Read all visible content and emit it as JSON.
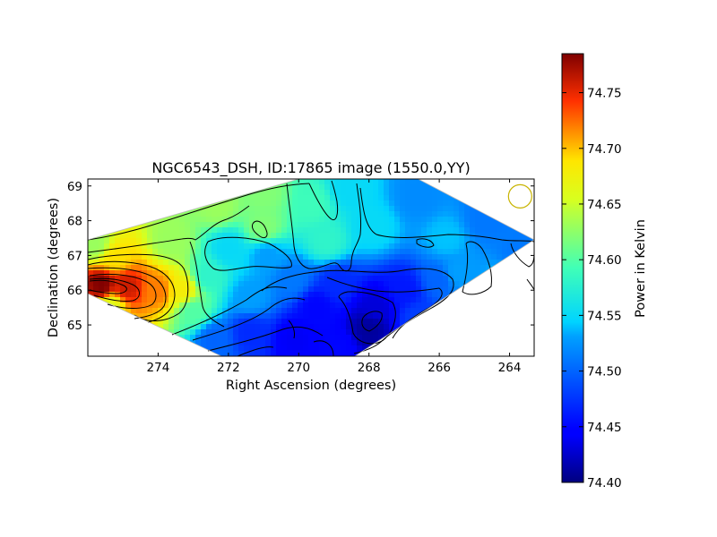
{
  "chart_data": {
    "type": "heatmap",
    "title": "NGC6543_DSH, ID:17865 image (1550.0,YY)",
    "xlabel": "Right Ascension (degrees)",
    "ylabel": "Declination (degrees)",
    "xlim": [
      276.0,
      263.3
    ],
    "ylim": [
      64.1,
      69.2
    ],
    "x_ticks": [
      {
        "value": 274,
        "label": "274"
      },
      {
        "value": 272,
        "label": "272"
      },
      {
        "value": 270,
        "label": "270"
      },
      {
        "value": 268,
        "label": "268"
      },
      {
        "value": 266,
        "label": "266"
      },
      {
        "value": 264,
        "label": "264"
      }
    ],
    "y_ticks": [
      {
        "value": 65,
        "label": "65"
      },
      {
        "value": 66,
        "label": "66"
      },
      {
        "value": 67,
        "label": "67"
      },
      {
        "value": 68,
        "label": "68"
      },
      {
        "value": 69,
        "label": "69"
      }
    ],
    "colorbar": {
      "label": "Power in Kelvin",
      "range": [
        74.4,
        74.785
      ],
      "ticks": [
        {
          "value": 74.4,
          "label": "74.40"
        },
        {
          "value": 74.45,
          "label": "74.45"
        },
        {
          "value": 74.5,
          "label": "74.50"
        },
        {
          "value": 74.55,
          "label": "74.55"
        },
        {
          "value": 74.6,
          "label": "74.60"
        },
        {
          "value": 74.65,
          "label": "74.65"
        },
        {
          "value": 74.7,
          "label": "74.70"
        },
        {
          "value": 74.75,
          "label": "74.75"
        }
      ],
      "colormap": "jet"
    },
    "beam_marker": {
      "ra": 263.7,
      "dec": 68.7,
      "color": "#c8b400"
    },
    "field_outline": [
      [
        276.0,
        67.45
      ],
      [
        270.0,
        69.2
      ],
      [
        266.6,
        69.2
      ],
      [
        263.3,
        67.45
      ],
      [
        268.4,
        64.1
      ],
      [
        272.2,
        64.1
      ],
      [
        276.0,
        65.9
      ]
    ],
    "field_samples": [
      {
        "ra": 275.6,
        "dec": 66.1,
        "value": 74.785
      },
      {
        "ra": 274.9,
        "dec": 66.1,
        "value": 74.76
      },
      {
        "ra": 274.0,
        "dec": 66.0,
        "value": 74.72
      },
      {
        "ra": 273.3,
        "dec": 66.0,
        "value": 74.68
      },
      {
        "ra": 275.2,
        "dec": 66.9,
        "value": 74.69
      },
      {
        "ra": 275.4,
        "dec": 65.6,
        "value": 74.66
      },
      {
        "ra": 275.8,
        "dec": 67.3,
        "value": 74.63
      },
      {
        "ra": 273.6,
        "dec": 67.4,
        "value": 74.63
      },
      {
        "ra": 272.3,
        "dec": 68.4,
        "value": 74.63
      },
      {
        "ra": 271.0,
        "dec": 68.8,
        "value": 74.62
      },
      {
        "ra": 271.0,
        "dec": 67.8,
        "value": 74.62
      },
      {
        "ra": 269.6,
        "dec": 68.5,
        "value": 74.59
      },
      {
        "ra": 269.2,
        "dec": 67.4,
        "value": 74.58
      },
      {
        "ra": 268.6,
        "dec": 68.9,
        "value": 74.55
      },
      {
        "ra": 267.9,
        "dec": 67.8,
        "value": 74.55
      },
      {
        "ra": 266.6,
        "dec": 68.7,
        "value": 74.52
      },
      {
        "ra": 265.8,
        "dec": 67.5,
        "value": 74.54
      },
      {
        "ra": 264.7,
        "dec": 68.0,
        "value": 74.51
      },
      {
        "ra": 263.8,
        "dec": 67.0,
        "value": 74.51
      },
      {
        "ra": 264.1,
        "dec": 66.3,
        "value": 74.54
      },
      {
        "ra": 265.5,
        "dec": 66.5,
        "value": 74.53
      },
      {
        "ra": 272.6,
        "dec": 66.4,
        "value": 74.58
      },
      {
        "ra": 272.0,
        "dec": 67.2,
        "value": 74.55
      },
      {
        "ra": 270.9,
        "dec": 67.0,
        "value": 74.53
      },
      {
        "ra": 270.2,
        "dec": 66.3,
        "value": 74.51
      },
      {
        "ra": 271.4,
        "dec": 65.8,
        "value": 74.53
      },
      {
        "ra": 273.0,
        "dec": 65.4,
        "value": 74.6
      },
      {
        "ra": 272.4,
        "dec": 64.6,
        "value": 74.5
      },
      {
        "ra": 271.4,
        "dec": 64.8,
        "value": 74.47
      },
      {
        "ra": 270.1,
        "dec": 64.6,
        "value": 74.44
      },
      {
        "ra": 269.5,
        "dec": 65.5,
        "value": 74.45
      },
      {
        "ra": 268.0,
        "dec": 64.9,
        "value": 74.41
      },
      {
        "ra": 267.8,
        "dec": 65.5,
        "value": 74.43
      },
      {
        "ra": 268.9,
        "dec": 64.3,
        "value": 74.45
      },
      {
        "ra": 267.0,
        "dec": 66.0,
        "value": 74.46
      },
      {
        "ra": 266.6,
        "dec": 65.2,
        "value": 74.48
      },
      {
        "ra": 266.0,
        "dec": 66.3,
        "value": 74.5
      },
      {
        "ra": 268.9,
        "dec": 66.2,
        "value": 74.47
      }
    ]
  }
}
